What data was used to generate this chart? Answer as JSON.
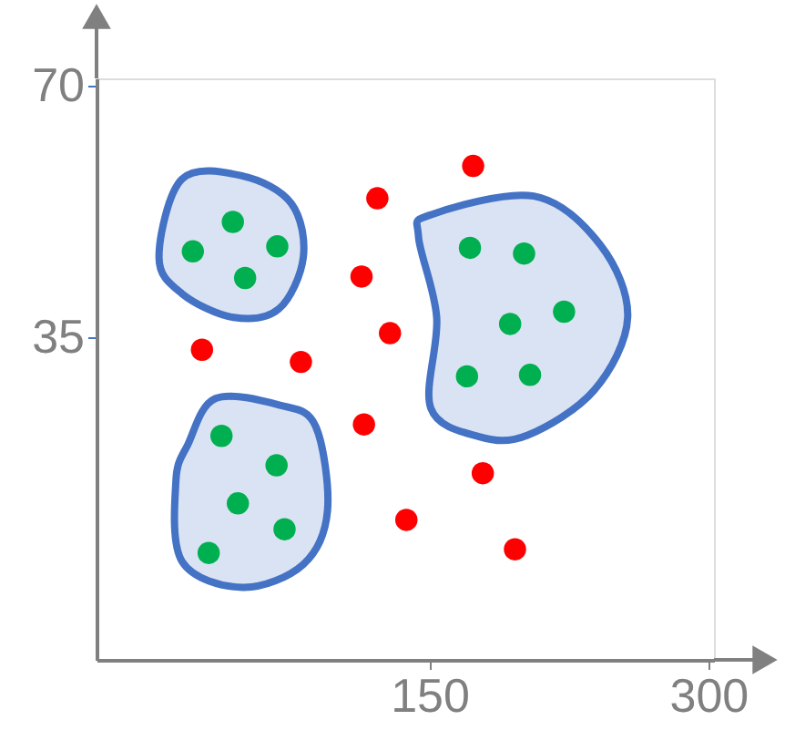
{
  "chart_data": {
    "type": "scatter",
    "marker": "circle",
    "xlim": [
      -29,
      303
    ],
    "ylim": [
      -10,
      71
    ],
    "xticks": [
      150,
      300
    ],
    "yticks": [
      35,
      70
    ],
    "series": [
      {
        "color": "#ff0000",
        "x": [
          173.5,
          122,
          113.5,
          128.8,
          27.7,
          80.9,
          114.8,
          178.7,
          137.6,
          196
        ],
        "values": [
          58.8,
          54.3,
          43.4,
          35.5,
          33.2,
          31.5,
          22.8,
          16.0,
          9.5,
          5.4
        ]
      },
      {
        "color": "#00b050",
        "x": [
          22.8,
          44.3,
          68.2,
          50.9,
          171.8,
          200.9,
          222.4,
          193.4,
          170.2,
          204.1,
          38.2,
          67.8,
          47.0,
          72.1,
          31.3
        ],
        "values": [
          46.9,
          51.0,
          47.6,
          43.2,
          47.4,
          46.6,
          38.5,
          36.8,
          29.5,
          29.7,
          21.2,
          17.1,
          11.8,
          8.2,
          4.9
        ]
      }
    ]
  }
}
